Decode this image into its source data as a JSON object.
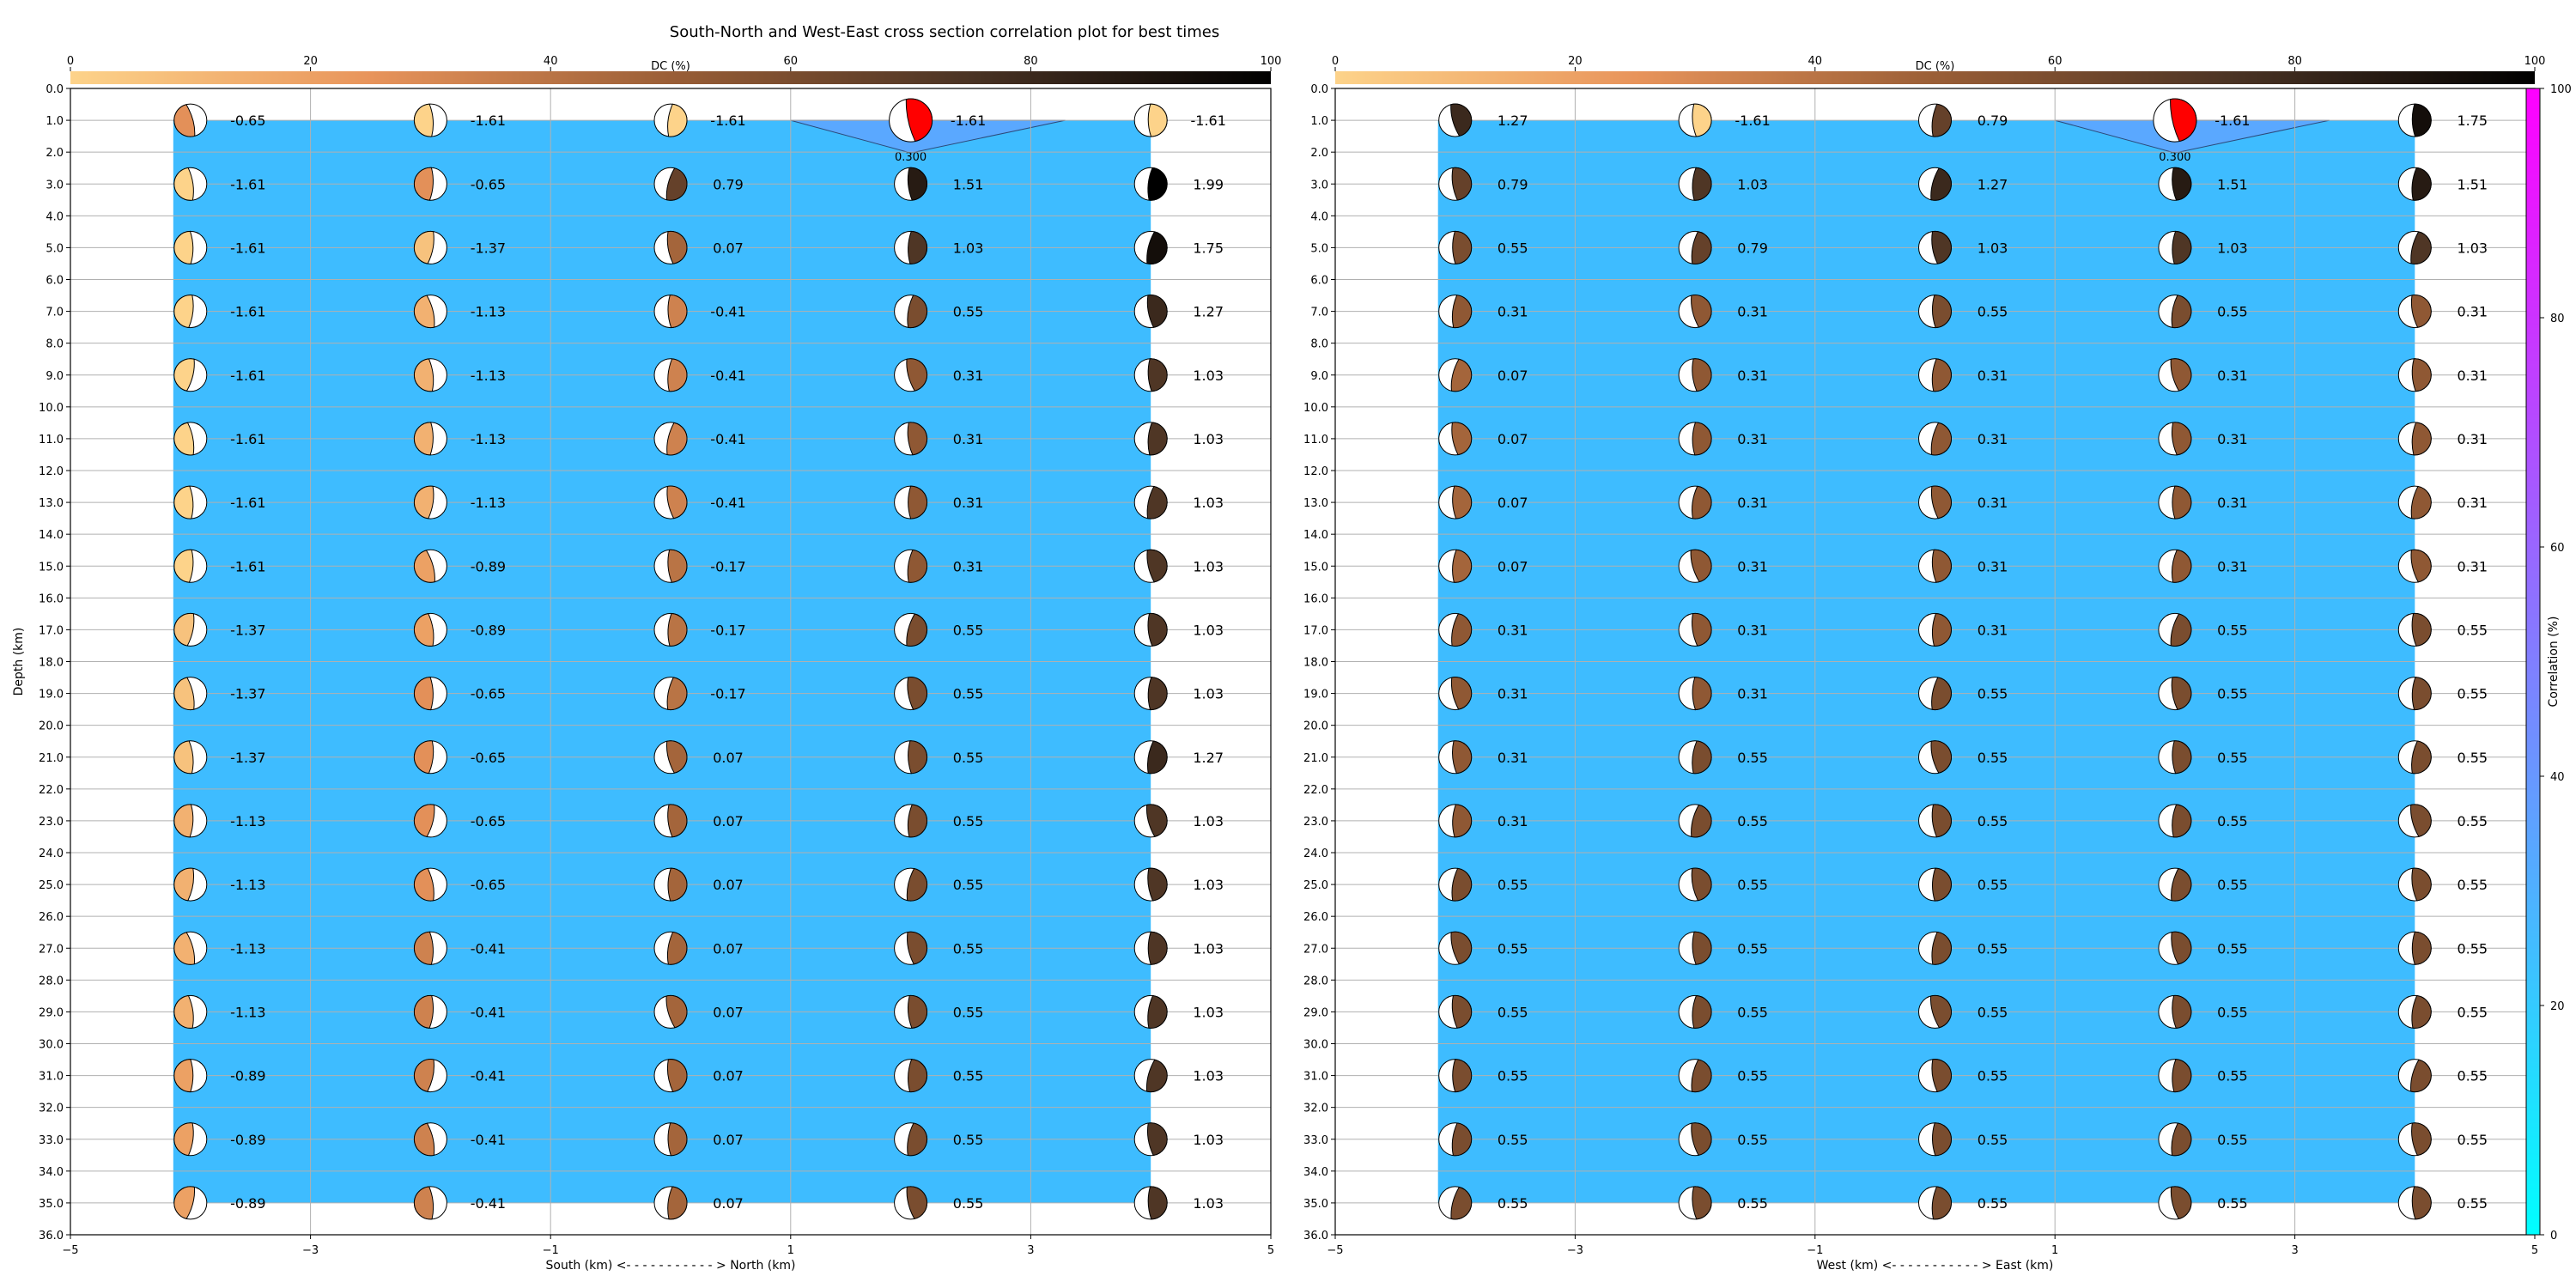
{
  "chart_data": {
    "title": "South-North and West-East cross section correlation plot for best times",
    "depth_label": "Depth (km)",
    "depth_ticks": [
      "0.0",
      "1.0",
      "2.0",
      "3.0",
      "4.0",
      "5.0",
      "6.0",
      "7.0",
      "8.0",
      "9.0",
      "10.0",
      "11.0",
      "12.0",
      "13.0",
      "14.0",
      "15.0",
      "16.0",
      "17.0",
      "18.0",
      "19.0",
      "20.0",
      "21.0",
      "22.0",
      "23.0",
      "24.0",
      "25.0",
      "26.0",
      "27.0",
      "28.0",
      "29.0",
      "30.0",
      "31.0",
      "32.0",
      "33.0",
      "34.0",
      "35.0",
      "36.0"
    ],
    "ylim": [
      36,
      0
    ],
    "dc_colorbar": {
      "label": "DC (%)",
      "ticks": [
        "0",
        "20",
        "40",
        "60",
        "80",
        "100"
      ],
      "range": [
        0,
        100
      ],
      "colors": [
        "#fdd38a",
        "#e8945b",
        "#9a5e36",
        "#4a3324",
        "#000000"
      ]
    },
    "corr_colorbar": {
      "label": "Correlation (%)",
      "ticks": [
        "0",
        "20",
        "40",
        "60",
        "80",
        "100"
      ],
      "range": [
        0,
        100
      ],
      "colors": [
        "#00ffff",
        "#5aa0ff",
        "#ff00ff"
      ]
    },
    "panels": [
      {
        "type": "scatter",
        "xlabel": "South (km) <- - - - - - - - - - - > North (km)",
        "xlim": [
          -5,
          5
        ],
        "xticks": [
          "-5",
          "-3",
          "-1",
          "1",
          "3",
          "5"
        ],
        "x": [
          -4,
          -2,
          0,
          2,
          4
        ],
        "depths": [
          1,
          3,
          5,
          7,
          9,
          11,
          13,
          15,
          17,
          19,
          21,
          23,
          25,
          27,
          29,
          31,
          33,
          35
        ],
        "best_value": "0.300",
        "best_x": 2,
        "best_depth": 1,
        "values": [
          [
            "-0.65",
            "-1.61",
            "-1.61",
            "-1.61",
            "-1.61"
          ],
          [
            "-1.61",
            "-0.65",
            "0.79",
            "1.51",
            "1.99"
          ],
          [
            "-1.61",
            "-1.37",
            "0.07",
            "1.03",
            "1.75"
          ],
          [
            "-1.61",
            "-1.13",
            "-0.41",
            "0.55",
            "1.27"
          ],
          [
            "-1.61",
            "-1.13",
            "-0.41",
            "0.31",
            "1.03"
          ],
          [
            "-1.61",
            "-1.13",
            "-0.41",
            "0.31",
            "1.03"
          ],
          [
            "-1.61",
            "-1.13",
            "-0.41",
            "0.31",
            "1.03"
          ],
          [
            "-1.61",
            "-0.89",
            "-0.17",
            "0.31",
            "1.03"
          ],
          [
            "-1.37",
            "-0.89",
            "-0.17",
            "0.55",
            "1.03"
          ],
          [
            "-1.37",
            "-0.65",
            "-0.17",
            "0.55",
            "1.03"
          ],
          [
            "-1.37",
            "-0.65",
            "0.07",
            "0.55",
            "1.27"
          ],
          [
            "-1.13",
            "-0.65",
            "0.07",
            "0.55",
            "1.03"
          ],
          [
            "-1.13",
            "-0.65",
            "0.07",
            "0.55",
            "1.03"
          ],
          [
            "-1.13",
            "-0.41",
            "0.07",
            "0.55",
            "1.03"
          ],
          [
            "-1.13",
            "-0.41",
            "0.07",
            "0.55",
            "1.03"
          ],
          [
            "-0.89",
            "-0.41",
            "0.07",
            "0.55",
            "1.03"
          ],
          [
            "-0.89",
            "-0.41",
            "0.07",
            "0.55",
            "1.03"
          ],
          [
            "-0.89",
            "-0.41",
            "0.07",
            "0.55",
            "1.03"
          ]
        ]
      },
      {
        "type": "scatter",
        "xlabel": "West (km) <- - - - - - - - - - - > East (km)",
        "xlim": [
          -5,
          5
        ],
        "xticks": [
          "-5",
          "-3",
          "-1",
          "1",
          "3",
          "5"
        ],
        "x": [
          -4,
          -2,
          0,
          2,
          4
        ],
        "depths": [
          1,
          3,
          5,
          7,
          9,
          11,
          13,
          15,
          17,
          19,
          21,
          23,
          25,
          27,
          29,
          31,
          33,
          35
        ],
        "best_value": "0.300",
        "best_x": 2,
        "best_depth": 1,
        "values": [
          [
            "1.27",
            "-1.61",
            "0.79",
            "-1.61",
            "1.75"
          ],
          [
            "0.79",
            "1.03",
            "1.27",
            "1.51",
            "1.51"
          ],
          [
            "0.55",
            "0.79",
            "1.03",
            "1.03",
            "1.03"
          ],
          [
            "0.31",
            "0.31",
            "0.55",
            "0.55",
            "0.31"
          ],
          [
            "0.07",
            "0.31",
            "0.31",
            "0.31",
            "0.31"
          ],
          [
            "0.07",
            "0.31",
            "0.31",
            "0.31",
            "0.31"
          ],
          [
            "0.07",
            "0.31",
            "0.31",
            "0.31",
            "0.31"
          ],
          [
            "0.07",
            "0.31",
            "0.31",
            "0.31",
            "0.31"
          ],
          [
            "0.31",
            "0.31",
            "0.31",
            "0.55",
            "0.55"
          ],
          [
            "0.31",
            "0.31",
            "0.55",
            "0.55",
            "0.55"
          ],
          [
            "0.31",
            "0.55",
            "0.55",
            "0.55",
            "0.55"
          ],
          [
            "0.31",
            "0.55",
            "0.55",
            "0.55",
            "0.55"
          ],
          [
            "0.55",
            "0.55",
            "0.55",
            "0.55",
            "0.55"
          ],
          [
            "0.55",
            "0.55",
            "0.55",
            "0.55",
            "0.55"
          ],
          [
            "0.55",
            "0.55",
            "0.55",
            "0.55",
            "0.55"
          ],
          [
            "0.55",
            "0.55",
            "0.55",
            "0.55",
            "0.55"
          ],
          [
            "0.55",
            "0.55",
            "0.55",
            "0.55",
            "0.55"
          ],
          [
            "0.55",
            "0.55",
            "0.55",
            "0.55",
            "0.55"
          ]
        ]
      }
    ]
  }
}
